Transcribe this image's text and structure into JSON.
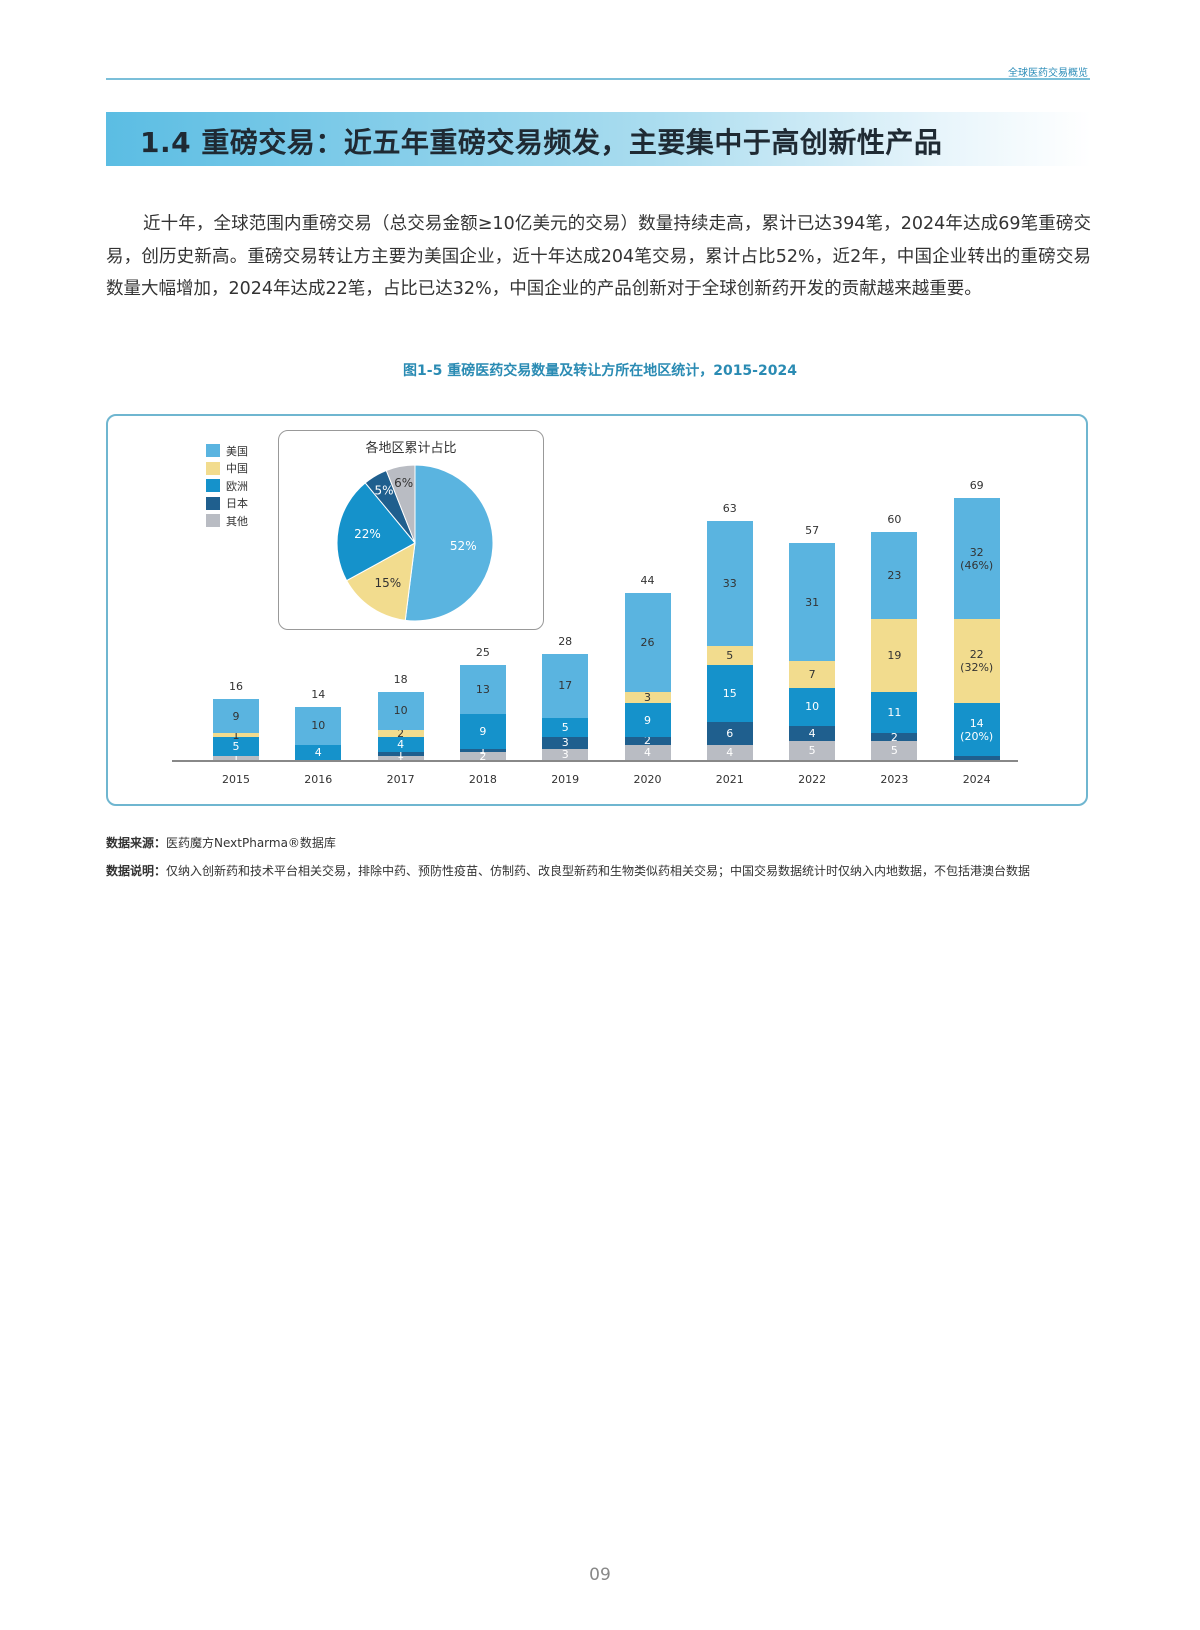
{
  "header": {
    "section_label": "全球医药交易概览"
  },
  "section": {
    "title": "1.4 重磅交易：近五年重磅交易频发，主要集中于高创新性产品"
  },
  "paragraph": "近十年，全球范围内重磅交易（总交易金额≥10亿美元的交易）数量持续走高，累计已达394笔，2024年达成69笔重磅交易，创历史新高。重磅交易转让方主要为美国企业，近十年达成204笔交易，累计占比52%，近2年，中国企业转出的重磅交易数量大幅增加，2024年达成22笔，占比已达32%，中国企业的产品创新对于全球创新药开发的贡献越来越重要。",
  "figure": {
    "title": "图1-5 重磅医药交易数量及转让方所在地区统计，2015-2024"
  },
  "legend": [
    {
      "label": "美国",
      "color": "#5ab4e0"
    },
    {
      "label": "中国",
      "color": "#f2dc8e"
    },
    {
      "label": "欧洲",
      "color": "#1592cb"
    },
    {
      "label": "日本",
      "color": "#1f5f8e"
    },
    {
      "label": "其他",
      "color": "#b9bcc3"
    }
  ],
  "chart_data": [
    {
      "type": "bar",
      "stacked": true,
      "title": "图1-5 重磅医药交易数量及转让方所在地区统计，2015-2024",
      "xlabel": "",
      "ylabel": "",
      "categories": [
        "2015",
        "2016",
        "2017",
        "2018",
        "2019",
        "2020",
        "2021",
        "2022",
        "2023",
        "2024"
      ],
      "totals": [
        16,
        14,
        18,
        25,
        28,
        44,
        63,
        57,
        60,
        69
      ],
      "series": [
        {
          "name": "其他",
          "color": "#b9bcc3",
          "values": [
            1,
            0,
            1,
            2,
            3,
            4,
            4,
            5,
            5,
            0
          ]
        },
        {
          "name": "日本",
          "color": "#1f5f8e",
          "values": [
            0,
            0,
            1,
            1,
            3,
            2,
            6,
            4,
            2,
            1
          ]
        },
        {
          "name": "欧洲",
          "color": "#1592cb",
          "values": [
            5,
            4,
            4,
            9,
            5,
            9,
            15,
            10,
            11,
            14
          ]
        },
        {
          "name": "中国",
          "color": "#f2dc8e",
          "values": [
            1,
            0,
            2,
            0,
            0,
            3,
            5,
            7,
            19,
            22
          ]
        },
        {
          "name": "美国",
          "color": "#5ab4e0",
          "values": [
            9,
            10,
            10,
            13,
            17,
            26,
            33,
            31,
            23,
            32
          ]
        }
      ],
      "annotations_2024": {
        "美国": "(46%)",
        "中国": "(32%)",
        "欧洲": "(20%)",
        "日本": "(1%)"
      },
      "grid": false,
      "legend_position": "top-left"
    },
    {
      "type": "pie",
      "title": "各地区累计占比",
      "categories": [
        "美国",
        "中国",
        "欧洲",
        "日本",
        "其他"
      ],
      "values": [
        52,
        15,
        22,
        5,
        6
      ],
      "labels": [
        "52%",
        "15%",
        "22%",
        "5%",
        "6%"
      ]
    }
  ],
  "notes": {
    "source_label": "数据来源：",
    "source_text": "医药魔方NextPharma®数据库",
    "explain_label": "数据说明：",
    "explain_text": "仅纳入创新药和技术平台相关交易，排除中药、预防性疫苗、仿制药、改良型新药和生物类似药相关交易；中国交易数据统计时仅纳入内地数据，不包括港澳台数据"
  },
  "page_number": "09"
}
